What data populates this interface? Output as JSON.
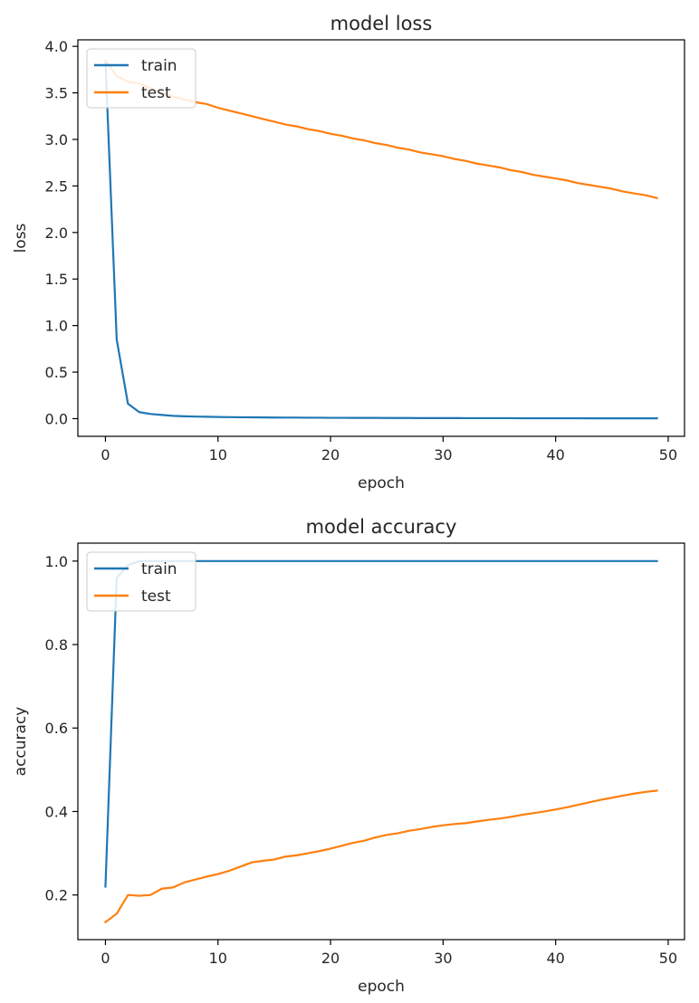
{
  "colors": {
    "train": "#1f77b4",
    "test": "#ff7f0e"
  },
  "chart_data": [
    {
      "type": "line",
      "title": "model loss",
      "xlabel": "epoch",
      "ylabel": "loss",
      "xlim": [
        -2.45,
        51.45
      ],
      "ylim": [
        -0.19,
        4.07
      ],
      "xticks": [
        0,
        10,
        20,
        30,
        40,
        50
      ],
      "yticks": [
        0.0,
        0.5,
        1.0,
        1.5,
        2.0,
        2.5,
        3.0,
        3.5,
        4.0
      ],
      "ytick_labels": [
        "0.0",
        "0.5",
        "1.0",
        "1.5",
        "2.0",
        "2.5",
        "3.0",
        "3.5",
        "4.0"
      ],
      "grid": false,
      "legend_position": "upper-left",
      "x": [
        0,
        1,
        2,
        3,
        4,
        5,
        6,
        7,
        8,
        9,
        10,
        11,
        12,
        13,
        14,
        15,
        16,
        17,
        18,
        19,
        20,
        21,
        22,
        23,
        24,
        25,
        26,
        27,
        28,
        29,
        30,
        31,
        32,
        33,
        34,
        35,
        36,
        37,
        38,
        39,
        40,
        41,
        42,
        43,
        44,
        45,
        46,
        47,
        48,
        49
      ],
      "series": [
        {
          "name": "train",
          "values": [
            3.85,
            0.85,
            0.16,
            0.07,
            0.05,
            0.04,
            0.03,
            0.025,
            0.022,
            0.02,
            0.018,
            0.016,
            0.015,
            0.014,
            0.013,
            0.012,
            0.011,
            0.011,
            0.01,
            0.01,
            0.009,
            0.009,
            0.008,
            0.008,
            0.008,
            0.007,
            0.007,
            0.007,
            0.006,
            0.006,
            0.006,
            0.006,
            0.005,
            0.005,
            0.005,
            0.005,
            0.005,
            0.004,
            0.004,
            0.004,
            0.004,
            0.004,
            0.004,
            0.003,
            0.003,
            0.003,
            0.003,
            0.003,
            0.003,
            0.003
          ]
        },
        {
          "name": "test",
          "values": [
            3.85,
            3.68,
            3.62,
            3.6,
            3.55,
            3.5,
            3.46,
            3.43,
            3.4,
            3.38,
            3.34,
            3.31,
            3.28,
            3.25,
            3.22,
            3.19,
            3.16,
            3.14,
            3.11,
            3.09,
            3.06,
            3.04,
            3.01,
            2.99,
            2.96,
            2.94,
            2.91,
            2.89,
            2.86,
            2.84,
            2.82,
            2.79,
            2.77,
            2.74,
            2.72,
            2.7,
            2.67,
            2.65,
            2.62,
            2.6,
            2.58,
            2.56,
            2.53,
            2.51,
            2.49,
            2.47,
            2.44,
            2.42,
            2.4,
            2.37
          ]
        }
      ]
    },
    {
      "type": "line",
      "title": "model accuracy",
      "xlabel": "epoch",
      "ylabel": "accuracy",
      "xlim": [
        -2.45,
        51.45
      ],
      "ylim": [
        0.093,
        1.043
      ],
      "xticks": [
        0,
        10,
        20,
        30,
        40,
        50
      ],
      "yticks": [
        0.2,
        0.4,
        0.6,
        0.8,
        1.0
      ],
      "ytick_labels": [
        "0.2",
        "0.4",
        "0.6",
        "0.8",
        "1.0"
      ],
      "grid": false,
      "legend_position": "upper-left",
      "x": [
        0,
        1,
        2,
        3,
        4,
        5,
        6,
        7,
        8,
        9,
        10,
        11,
        12,
        13,
        14,
        15,
        16,
        17,
        18,
        19,
        20,
        21,
        22,
        23,
        24,
        25,
        26,
        27,
        28,
        29,
        30,
        31,
        32,
        33,
        34,
        35,
        36,
        37,
        38,
        39,
        40,
        41,
        42,
        43,
        44,
        45,
        46,
        47,
        48,
        49
      ],
      "series": [
        {
          "name": "train",
          "values": [
            0.22,
            0.96,
            0.99,
            1.0,
            1.0,
            1.0,
            1.0,
            1.0,
            1.0,
            1.0,
            1.0,
            1.0,
            1.0,
            1.0,
            1.0,
            1.0,
            1.0,
            1.0,
            1.0,
            1.0,
            1.0,
            1.0,
            1.0,
            1.0,
            1.0,
            1.0,
            1.0,
            1.0,
            1.0,
            1.0,
            1.0,
            1.0,
            1.0,
            1.0,
            1.0,
            1.0,
            1.0,
            1.0,
            1.0,
            1.0,
            1.0,
            1.0,
            1.0,
            1.0,
            1.0,
            1.0,
            1.0,
            1.0,
            1.0,
            1.0
          ]
        },
        {
          "name": "test",
          "values": [
            0.135,
            0.155,
            0.2,
            0.198,
            0.2,
            0.215,
            0.218,
            0.23,
            0.237,
            0.244,
            0.25,
            0.258,
            0.268,
            0.278,
            0.282,
            0.285,
            0.292,
            0.295,
            0.3,
            0.305,
            0.311,
            0.318,
            0.325,
            0.33,
            0.338,
            0.344,
            0.348,
            0.354,
            0.358,
            0.363,
            0.367,
            0.37,
            0.372,
            0.376,
            0.38,
            0.383,
            0.387,
            0.392,
            0.396,
            0.4,
            0.405,
            0.41,
            0.416,
            0.422,
            0.428,
            0.433,
            0.438,
            0.443,
            0.447,
            0.45
          ]
        }
      ]
    }
  ]
}
